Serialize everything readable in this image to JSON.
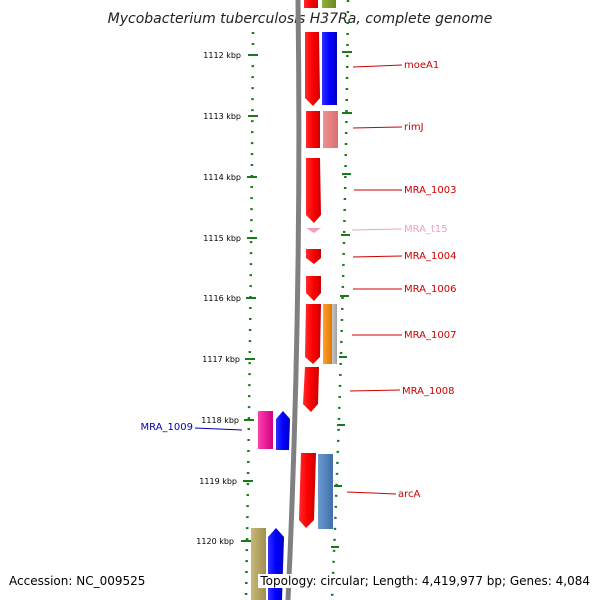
{
  "title": "Mycobacterium tuberculosis H37Ra, complete genome",
  "ticks": [
    "1112 kbp",
    "1113 kbp",
    "1114 kbp",
    "1115 kbp",
    "1116 kbp",
    "1117 kbp",
    "1118 kbp",
    "1119 kbp",
    "1120 kbp"
  ],
  "genes": [
    {
      "label": "moeA1",
      "color": "#cc0000"
    },
    {
      "label": "rimJ",
      "color": "#cc0000"
    },
    {
      "label": "MRA_1003",
      "color": "#cc0000"
    },
    {
      "label": "MRA_t15",
      "color": "#f0a0c8"
    },
    {
      "label": "MRA_1004",
      "color": "#cc0000"
    },
    {
      "label": "MRA_1006",
      "color": "#cc0000"
    },
    {
      "label": "MRA_1007",
      "color": "#cc0000"
    },
    {
      "label": "MRA_1008",
      "color": "#cc0000"
    },
    {
      "label": "MRA_1009",
      "color": "#0000aa"
    },
    {
      "label": "arcA",
      "color": "#cc0000"
    }
  ],
  "footer": {
    "accession": "Accession: NC_009525",
    "topology": "Topology: circular; Length: 4,419,977 bp; Genes: 4,084"
  },
  "colors": {
    "forward_gene": "#ff0000",
    "reverse_gene": "#0000ff",
    "tick_green": "#1a7a1a",
    "backbone": "#808080"
  }
}
